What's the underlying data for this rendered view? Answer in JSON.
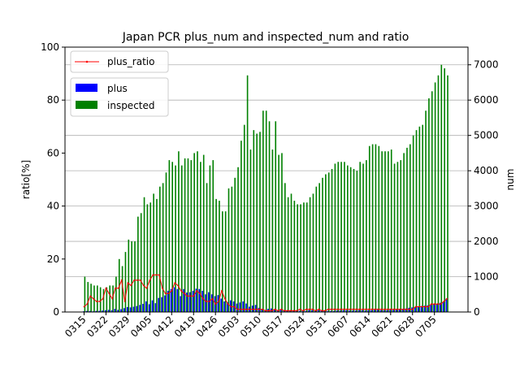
{
  "chart_data": {
    "type": "bar",
    "title": "Japan PCR plus_num and inspected_num and ratio",
    "xlabel": "",
    "ylabel_left": "ratio[%]",
    "ylabel_right": "num",
    "ylim_left": [
      0,
      100
    ],
    "ylim_right": [
      0,
      7500
    ],
    "yticks_left": [
      "0",
      "20",
      "40",
      "60",
      "80",
      "100"
    ],
    "yticks_right": [
      "0",
      "1000",
      "2000",
      "3000",
      "4000",
      "5000",
      "6000",
      "7000"
    ],
    "grid": "horizontal (right axis)",
    "xtick_labels": [
      "0315",
      "0322",
      "0329",
      "0405",
      "0412",
      "0419",
      "0426",
      "0503",
      "0510",
      "0517",
      "0524",
      "0531",
      "0607",
      "0614",
      "0621",
      "0628",
      "0705"
    ],
    "start_date": "0315",
    "legend_line": {
      "label": "plus_ratio",
      "placement": "top-left"
    },
    "legend_bars": [
      {
        "label": "plus",
        "color": "#0000ff"
      },
      {
        "label": "inspected",
        "color": "#008000"
      }
    ],
    "colors": {
      "plus": "#0000ff",
      "inspected": "#008000",
      "ratio": "#ff0000",
      "grid": "#b0b0b0"
    },
    "series": [
      {
        "name": "inspected",
        "axis": "right",
        "values": [
          1000,
          850,
          800,
          750,
          750,
          700,
          650,
          700,
          750,
          750,
          1000,
          1500,
          1300,
          1700,
          2050,
          2000,
          2000,
          2700,
          2800,
          3250,
          3050,
          3100,
          3350,
          3200,
          3550,
          3650,
          3950,
          4300,
          4250,
          4150,
          4550,
          4150,
          4350,
          4350,
          4300,
          4500,
          4550,
          4250,
          4450,
          3650,
          4150,
          4300,
          3200,
          3150,
          2850,
          2850,
          3500,
          3550,
          3800,
          4100,
          4850,
          5300,
          6700,
          4600,
          5150,
          5050,
          5100,
          5700,
          5700,
          5400,
          4600,
          5400,
          4450,
          4500,
          3650,
          3250,
          3350,
          3150,
          3050,
          3050,
          3100,
          3100,
          3250,
          3350,
          3550,
          3650,
          3800,
          3900,
          3950,
          4050,
          4200,
          4250,
          4250,
          4250,
          4150,
          4100,
          4050,
          4000,
          4250,
          4200,
          4300,
          4700,
          4750,
          4750,
          4700,
          4550,
          4550,
          4550,
          4600,
          4200,
          4250,
          4300,
          4500,
          4650,
          4750,
          5000,
          5150,
          5250,
          5300,
          5700,
          6050,
          6250,
          6500,
          6700,
          7000,
          6900,
          6700
        ]
      },
      {
        "name": "plus",
        "axis": "right",
        "values": [
          20,
          30,
          30,
          20,
          30,
          30,
          40,
          50,
          60,
          50,
          90,
          60,
          80,
          110,
          140,
          130,
          150,
          170,
          200,
          230,
          300,
          220,
          330,
          250,
          400,
          420,
          470,
          600,
          650,
          700,
          650,
          450,
          650,
          550,
          560,
          600,
          660,
          650,
          600,
          500,
          560,
          500,
          450,
          480,
          380,
          300,
          280,
          330,
          300,
          240,
          270,
          300,
          240,
          150,
          180,
          200,
          120,
          90,
          50,
          90,
          100,
          60,
          50,
          60,
          40,
          50,
          40,
          30,
          30,
          30,
          30,
          30,
          50,
          50,
          30,
          50,
          50,
          30,
          30,
          30,
          30,
          40,
          40,
          50,
          50,
          40,
          40,
          40,
          50,
          50,
          40,
          50,
          50,
          60,
          60,
          50,
          50,
          50,
          60,
          60,
          70,
          80,
          90,
          100,
          120,
          130,
          140,
          150,
          170,
          180,
          190,
          200,
          220,
          230,
          260,
          280,
          380
        ]
      },
      {
        "name": "plus_ratio",
        "axis": "left",
        "values": [
          2,
          3,
          6,
          5,
          4,
          4,
          5,
          9,
          7,
          5,
          9,
          9,
          12,
          4,
          11,
          10,
          12,
          12,
          12,
          10,
          9,
          12,
          14,
          14,
          14,
          9,
          7,
          7,
          8,
          11,
          10,
          8,
          7,
          6,
          6,
          6,
          8,
          7,
          5,
          4,
          4,
          5,
          3,
          4,
          8,
          5,
          3,
          2,
          2,
          1,
          1,
          1,
          1,
          1,
          1,
          1,
          1,
          1,
          0.5,
          0.5,
          0.5,
          1,
          0.5,
          1,
          0.5,
          0.5,
          0.5,
          0.5,
          0.5,
          1,
          0.5,
          1,
          1,
          1,
          0.5,
          1,
          0.5,
          0.5,
          1,
          1,
          1,
          1,
          1,
          1,
          1,
          1,
          1,
          1,
          1,
          1,
          1,
          1,
          1,
          1,
          1,
          1,
          1,
          1,
          1,
          1,
          1,
          1,
          1,
          1,
          1,
          1,
          2,
          2,
          2,
          2,
          2,
          3,
          3,
          3,
          3,
          4,
          5
        ]
      }
    ]
  }
}
